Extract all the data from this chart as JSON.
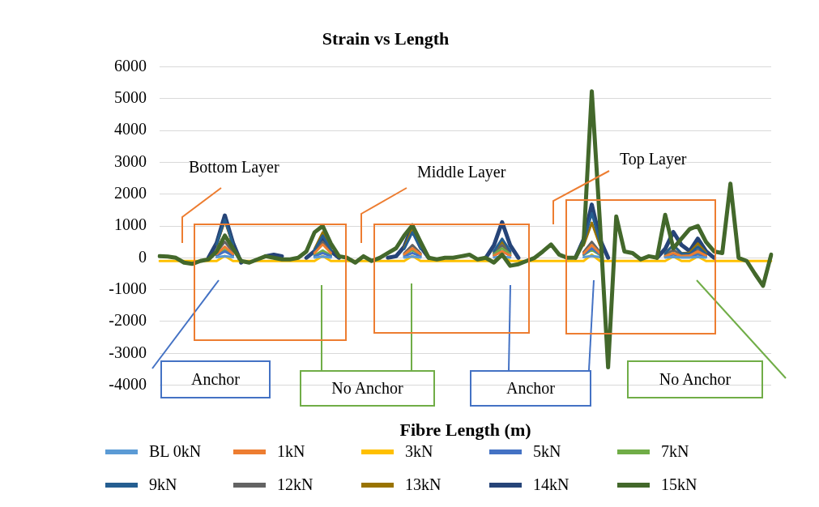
{
  "chart_data": {
    "type": "line",
    "title": "Strain vs Length",
    "xlabel": "Fibre Length (m)",
    "categories": [
      null,
      null,
      null,
      null,
      null,
      null,
      null,
      null,
      null,
      null,
      null,
      null,
      null,
      null,
      null,
      null,
      null,
      null,
      null,
      null,
      null,
      null,
      null,
      null,
      null,
      null,
      null,
      null,
      null,
      null,
      null,
      null,
      null,
      null,
      null,
      null,
      null,
      null,
      null,
      null,
      null,
      null,
      null,
      null,
      null,
      null,
      null,
      null,
      null,
      null,
      null,
      null,
      null,
      null,
      null,
      null,
      null,
      null,
      null,
      null,
      null,
      null,
      null,
      null,
      null,
      null,
      null,
      null,
      null,
      null,
      null,
      null,
      null,
      null,
      null,
      null
    ],
    "ylim": [
      -4000,
      6000
    ],
    "yticks": [
      -4000,
      -3000,
      -2000,
      -1000,
      0,
      1000,
      2000,
      3000,
      4000,
      5000,
      6000
    ],
    "grid": "y",
    "legend": "bottom",
    "marker": "none",
    "line_style": "solid",
    "annotations": [
      "Bottom Layer",
      "Middle Layer",
      "Top Layer",
      "Anchor",
      "No Anchor",
      "Anchor",
      "No Anchor"
    ],
    "series": [
      {
        "name": "BL 0kN",
        "color": "#5b9bd5",
        "values": [
          null,
          null,
          null,
          null,
          null,
          null,
          null,
          20,
          50,
          20,
          null,
          null,
          null,
          null,
          null,
          null,
          null,
          null,
          null,
          10,
          40,
          10,
          null,
          null,
          null,
          null,
          null,
          null,
          null,
          null,
          10,
          40,
          10,
          null,
          null,
          null,
          null,
          null,
          null,
          null,
          null,
          10,
          40,
          10,
          null,
          null,
          null,
          null,
          null,
          null,
          null,
          null,
          20,
          60,
          20,
          null,
          null,
          null,
          null,
          null,
          null,
          null,
          10,
          30,
          10,
          10,
          30,
          10,
          null,
          null,
          null,
          null,
          null,
          null,
          null,
          null
        ]
      },
      {
        "name": "1kN",
        "color": "#ed7d31",
        "values": [
          null,
          null,
          null,
          null,
          null,
          null,
          null,
          120,
          350,
          120,
          null,
          null,
          null,
          null,
          null,
          null,
          null,
          null,
          null,
          150,
          420,
          150,
          null,
          null,
          null,
          null,
          null,
          null,
          null,
          null,
          110,
          300,
          110,
          null,
          null,
          null,
          null,
          null,
          null,
          null,
          null,
          70,
          200,
          70,
          null,
          null,
          null,
          null,
          null,
          null,
          null,
          null,
          140,
          400,
          140,
          null,
          null,
          null,
          null,
          null,
          null,
          null,
          50,
          150,
          50,
          70,
          200,
          70,
          null,
          null,
          null,
          null,
          null,
          null,
          null,
          null
        ]
      },
      {
        "name": "3kN",
        "color": "#ffc000",
        "values": [
          -100,
          -100,
          -100,
          -100,
          -100,
          -100,
          -100,
          -100,
          60,
          -100,
          -100,
          -100,
          -100,
          -100,
          -100,
          -100,
          -100,
          -100,
          -100,
          -100,
          60,
          -100,
          -100,
          -100,
          -100,
          -100,
          -100,
          -100,
          -100,
          -100,
          -100,
          60,
          -100,
          -100,
          -100,
          -100,
          -100,
          -100,
          -100,
          -100,
          -100,
          -100,
          80,
          -100,
          -100,
          -100,
          -100,
          -100,
          -100,
          -100,
          -100,
          -100,
          -100,
          100,
          -100,
          -100,
          -100,
          -100,
          -100,
          -100,
          -100,
          -100,
          -100,
          40,
          -100,
          -100,
          40,
          -100,
          -100,
          -100,
          -100,
          -100,
          -100,
          -100,
          -100,
          -100
        ]
      },
      {
        "name": "5kN",
        "color": "#4472c4",
        "values": [
          null,
          null,
          null,
          null,
          null,
          null,
          null,
          70,
          200,
          70,
          null,
          null,
          null,
          null,
          null,
          null,
          null,
          null,
          null,
          50,
          150,
          50,
          null,
          null,
          null,
          null,
          null,
          null,
          null,
          null,
          50,
          150,
          50,
          null,
          null,
          null,
          null,
          null,
          null,
          null,
          null,
          70,
          200,
          70,
          null,
          null,
          null,
          null,
          null,
          null,
          null,
          null,
          110,
          300,
          110,
          null,
          null,
          null,
          null,
          null,
          null,
          null,
          40,
          100,
          40,
          40,
          100,
          40,
          null,
          null,
          null,
          null,
          null,
          null,
          null,
          null
        ]
      },
      {
        "name": "7kN",
        "color": "#70ad47",
        "values": [
          null,
          null,
          null,
          null,
          null,
          null,
          null,
          90,
          250,
          90,
          null,
          null,
          null,
          null,
          null,
          null,
          null,
          null,
          null,
          80,
          230,
          80,
          null,
          null,
          null,
          null,
          null,
          null,
          null,
          null,
          90,
          250,
          90,
          null,
          null,
          null,
          null,
          null,
          null,
          null,
          null,
          110,
          300,
          110,
          null,
          null,
          null,
          null,
          null,
          null,
          null,
          null,
          90,
          250,
          90,
          null,
          null,
          null,
          null,
          null,
          null,
          null,
          50,
          150,
          50,
          50,
          150,
          50,
          null,
          null,
          null,
          null,
          null,
          null,
          null,
          null
        ]
      },
      {
        "name": "9kN",
        "color": "#255e91",
        "values": [
          null,
          null,
          null,
          null,
          null,
          null,
          null,
          420,
          1200,
          420,
          null,
          null,
          null,
          null,
          null,
          null,
          null,
          null,
          null,
          250,
          700,
          250,
          null,
          null,
          null,
          null,
          null,
          null,
          null,
          null,
          280,
          800,
          280,
          null,
          null,
          null,
          null,
          null,
          null,
          null,
          null,
          210,
          600,
          210,
          null,
          null,
          null,
          null,
          null,
          null,
          null,
          null,
          490,
          1400,
          490,
          null,
          null,
          null,
          null,
          null,
          null,
          null,
          140,
          400,
          140,
          120,
          350,
          120,
          null,
          null,
          null,
          null,
          null,
          null,
          null,
          null
        ]
      },
      {
        "name": "12kN",
        "color": "#636363",
        "values": [
          null,
          null,
          null,
          null,
          null,
          null,
          null,
          180,
          500,
          180,
          null,
          null,
          null,
          null,
          null,
          null,
          null,
          null,
          null,
          180,
          500,
          180,
          null,
          null,
          null,
          null,
          null,
          null,
          null,
          null,
          140,
          400,
          140,
          null,
          null,
          null,
          null,
          null,
          null,
          null,
          null,
          140,
          400,
          140,
          null,
          null,
          null,
          null,
          null,
          null,
          null,
          null,
          180,
          500,
          180,
          null,
          null,
          null,
          null,
          null,
          null,
          null,
          90,
          250,
          90,
          90,
          250,
          90,
          null,
          null,
          null,
          null,
          null,
          null,
          null,
          null
        ]
      },
      {
        "name": "13kN",
        "color": "#997300",
        "values": [
          null,
          null,
          null,
          null,
          null,
          null,
          null,
          410,
          1160,
          410,
          null,
          null,
          null,
          null,
          null,
          null,
          null,
          null,
          null,
          280,
          800,
          280,
          null,
          null,
          null,
          null,
          null,
          null,
          null,
          null,
          320,
          900,
          320,
          null,
          null,
          null,
          null,
          null,
          null,
          null,
          null,
          180,
          500,
          180,
          null,
          null,
          null,
          null,
          null,
          null,
          null,
          null,
          390,
          1100,
          390,
          null,
          null,
          null,
          null,
          null,
          null,
          null,
          140,
          400,
          140,
          160,
          450,
          160,
          null,
          null,
          null,
          null,
          null,
          null,
          null,
          null
        ]
      },
      {
        "name": "14kN",
        "color": "#264478",
        "values": [
          null,
          null,
          null,
          null,
          null,
          null,
          0,
          470,
          1330,
          470,
          -150,
          null,
          null,
          50,
          100,
          50,
          null,
          null,
          0,
          210,
          600,
          210,
          0,
          null,
          null,
          null,
          null,
          null,
          0,
          50,
          350,
          1000,
          350,
          0,
          null,
          null,
          null,
          null,
          null,
          null,
          0,
          390,
          1120,
          390,
          0,
          null,
          null,
          null,
          null,
          null,
          null,
          0,
          580,
          1670,
          580,
          0,
          null,
          null,
          null,
          null,
          null,
          0,
          280,
          810,
          400,
          210,
          600,
          210,
          0,
          null,
          null,
          null,
          null,
          null,
          null,
          null
        ]
      },
      {
        "name": "15kN",
        "color": "#43682b",
        "values": [
          50,
          40,
          0,
          -150,
          -190,
          -100,
          -50,
          200,
          700,
          300,
          -100,
          -150,
          -50,
          50,
          0,
          -50,
          -50,
          0,
          200,
          800,
          1000,
          450,
          50,
          0,
          -150,
          50,
          -100,
          0,
          150,
          300,
          700,
          1020,
          500,
          0,
          -50,
          0,
          0,
          50,
          100,
          -50,
          0,
          -150,
          100,
          -250,
          -200,
          -100,
          0,
          200,
          420,
          100,
          0,
          0,
          500,
          5230,
          1100,
          -3440,
          1300,
          200,
          150,
          -50,
          50,
          0,
          1350,
          300,
          600,
          900,
          1000,
          500,
          200,
          150,
          2330,
          0,
          -100,
          -500,
          -880,
          100
        ]
      }
    ]
  }
}
